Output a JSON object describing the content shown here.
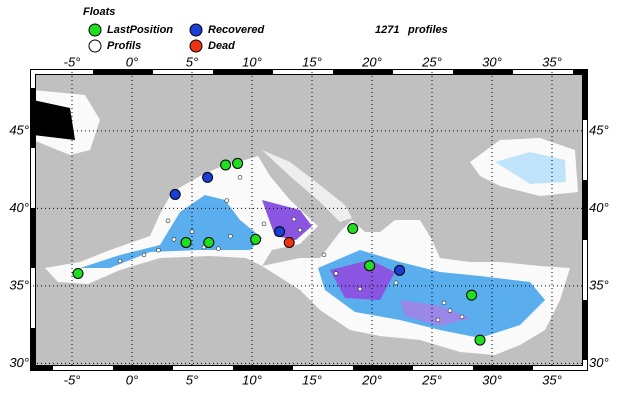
{
  "legend": {
    "title": "Floats",
    "items": [
      {
        "label": "LastPosition",
        "color": "#1fe01f"
      },
      {
        "label": "Profils",
        "color": "#ffffff"
      },
      {
        "label": "Recovered",
        "color": "#1a3fd6"
      },
      {
        "label": "Dead",
        "color": "#ee3311"
      }
    ]
  },
  "profiles": {
    "count": 1271,
    "label": "profiles"
  },
  "map": {
    "xlim": [
      -8.25,
      37.75
    ],
    "ylim": [
      29.7,
      48.8
    ],
    "xticks": [
      {
        "value": -5,
        "label": "-5°"
      },
      {
        "value": 0,
        "label": "0°"
      },
      {
        "value": 5,
        "label": "5°"
      },
      {
        "value": 10,
        "label": "10°"
      },
      {
        "value": 15,
        "label": "15°"
      },
      {
        "value": 20,
        "label": "20°"
      },
      {
        "value": 25,
        "label": "25°"
      },
      {
        "value": 30,
        "label": "30°"
      },
      {
        "value": 35,
        "label": "35°"
      }
    ],
    "yticks": [
      {
        "value": 30,
        "label": "30°"
      },
      {
        "value": 35,
        "label": "35°"
      },
      {
        "value": 40,
        "label": "40°"
      },
      {
        "value": 45,
        "label": "45°"
      }
    ],
    "floats": [
      {
        "lon": [
          7.8,
          8.8,
          4.5,
          6.4,
          10.3,
          18.4,
          19.8,
          -4.5,
          28.3,
          29.0
        ],
        "lat": [
          42.8,
          42.9,
          37.8,
          37.8,
          38.0,
          38.7,
          36.3,
          35.8,
          34.4,
          31.5
        ]
      },
      {
        "lon": [
          1.0,
          2.2,
          3.5,
          5.0,
          6.0,
          7.2,
          8.2,
          9.0,
          11.0,
          13.5,
          14.0,
          16.0,
          22.0,
          25.5,
          26.5,
          27.5,
          26.0,
          19.0,
          17.0,
          7.9,
          3.0,
          -1.0
        ],
        "lat": [
          37.0,
          37.3,
          38.0,
          38.5,
          37.5,
          37.4,
          38.2,
          42.0,
          39.0,
          39.3,
          38.6,
          37.0,
          35.2,
          32.8,
          33.4,
          33.0,
          33.9,
          34.8,
          35.8,
          40.5,
          39.2,
          36.6
        ]
      },
      {
        "lon": [
          6.3,
          3.6,
          12.3,
          22.3
        ],
        "lat": [
          42.0,
          40.9,
          38.5,
          36.0
        ]
      },
      {
        "lon": [
          13.1
        ],
        "lat": [
          37.8
        ]
      }
    ]
  }
}
